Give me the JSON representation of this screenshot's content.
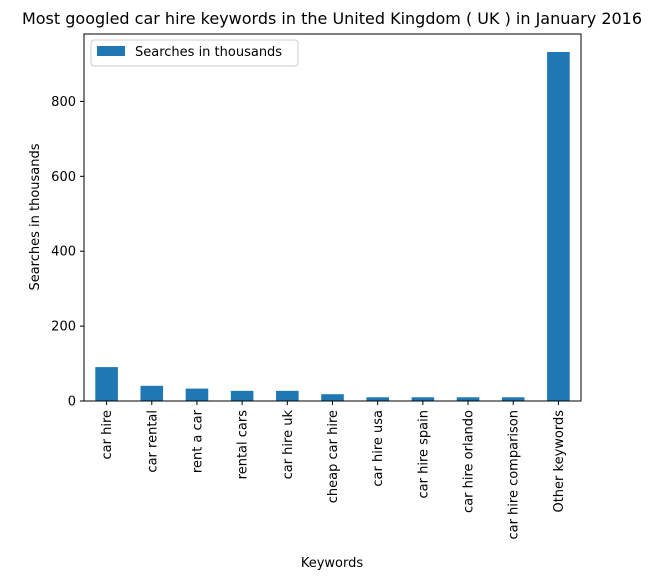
{
  "chart_data": {
    "type": "bar",
    "title": "Most googled car hire keywords in the United Kingdom ( UK ) in January 2016",
    "xlabel": "Keywords",
    "ylabel": "Searches in thousands",
    "categories": [
      "car hire",
      "car rental",
      "rent a car",
      "rental cars",
      "car hire uk",
      "cheap car hire",
      "car hire usa",
      "car hire spain",
      "car hire orlando",
      "car hire comparison",
      "Other keywords"
    ],
    "series": [
      {
        "name": "Searches in thousands",
        "values": [
          90.5,
          40.5,
          33.1,
          27.1,
          27.1,
          18.1,
          9.9,
          9.9,
          9.9,
          9.9,
          932
        ]
      }
    ],
    "ylim": [
      0,
      980
    ],
    "yticks": [
      0,
      200,
      400,
      600,
      800
    ],
    "grid": false,
    "legend_position": "top-left",
    "bar_color": "#1f77b4"
  }
}
